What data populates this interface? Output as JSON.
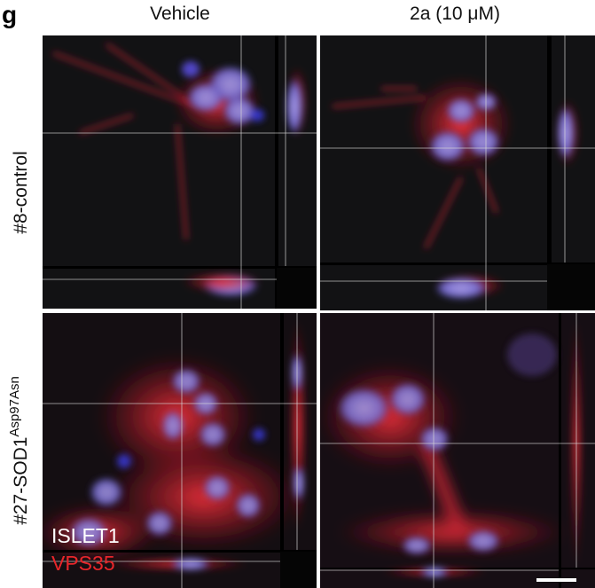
{
  "panel_letter": "g",
  "columns": [
    "Vehicle",
    "2a (10 μM)"
  ],
  "rows": [
    {
      "label": "#8-control"
    },
    {
      "label": "#27-SOD1",
      "superscript": "Asp97Asn"
    }
  ],
  "channels": [
    {
      "name": "ISLET1",
      "color": "#ffffff"
    },
    {
      "name": "VPS35",
      "color": "#e8262a"
    }
  ]
}
